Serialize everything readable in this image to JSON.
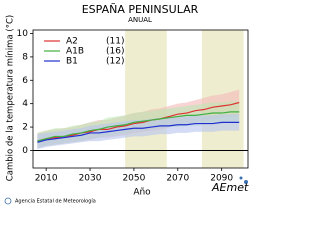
{
  "chart_data": {
    "type": "line",
    "title": "ESPAÑA PENINSULAR",
    "subtitle": "ANUAL",
    "y_label": "Cambio de la temperatura mínima (°C)",
    "x_label": "Año",
    "x": [
      2006,
      2010,
      2014,
      2018,
      2022,
      2026,
      2030,
      2034,
      2038,
      2042,
      2046,
      2050,
      2054,
      2058,
      2062,
      2066,
      2070,
      2074,
      2078,
      2082,
      2086,
      2090,
      2094,
      2098
    ],
    "series": [
      {
        "name": "A2",
        "count": "(11)",
        "color": "#e03030",
        "band_color": "#f4b8b8",
        "values": [
          0.8,
          1.0,
          1.1,
          1.2,
          1.3,
          1.5,
          1.6,
          1.8,
          1.8,
          2.0,
          2.1,
          2.3,
          2.4,
          2.6,
          2.7,
          2.9,
          3.1,
          3.2,
          3.4,
          3.5,
          3.7,
          3.8,
          3.9,
          4.1
        ],
        "lower": [
          0.2,
          0.4,
          0.5,
          0.6,
          0.7,
          0.8,
          0.9,
          1.1,
          1.1,
          1.2,
          1.3,
          1.5,
          1.6,
          1.7,
          1.8,
          2.0,
          2.2,
          2.3,
          2.4,
          2.5,
          2.7,
          2.8,
          2.9,
          3.0
        ],
        "upper": [
          1.5,
          1.7,
          1.8,
          1.9,
          2.0,
          2.2,
          2.4,
          2.6,
          2.6,
          2.8,
          3.0,
          3.2,
          3.3,
          3.5,
          3.6,
          3.8,
          4.0,
          4.1,
          4.3,
          4.5,
          4.7,
          4.8,
          5.0,
          5.2
        ]
      },
      {
        "name": "A1B",
        "count": "(16)",
        "color": "#40b040",
        "band_color": "#bde6b4",
        "values": [
          0.8,
          1.0,
          1.2,
          1.2,
          1.4,
          1.5,
          1.7,
          1.8,
          2.0,
          2.1,
          2.2,
          2.4,
          2.5,
          2.6,
          2.7,
          2.8,
          2.9,
          3.0,
          3.0,
          3.1,
          3.2,
          3.2,
          3.3,
          3.3
        ],
        "lower": [
          0.2,
          0.4,
          0.5,
          0.6,
          0.7,
          0.8,
          1.0,
          1.1,
          1.2,
          1.3,
          1.4,
          1.6,
          1.7,
          1.8,
          1.9,
          2.0,
          2.0,
          2.1,
          2.1,
          2.2,
          2.3,
          2.3,
          2.4,
          2.4
        ],
        "upper": [
          1.5,
          1.7,
          1.9,
          1.9,
          2.1,
          2.2,
          2.4,
          2.5,
          2.8,
          2.9,
          3.0,
          3.2,
          3.3,
          3.4,
          3.5,
          3.6,
          3.7,
          3.8,
          3.9,
          4.0,
          4.1,
          4.1,
          4.2,
          4.2
        ]
      },
      {
        "name": "B1",
        "count": "(12)",
        "color": "#2030d0",
        "band_color": "#b8c4ee",
        "values": [
          0.7,
          0.9,
          1.0,
          1.1,
          1.2,
          1.3,
          1.5,
          1.5,
          1.6,
          1.7,
          1.8,
          1.9,
          1.9,
          2.0,
          2.1,
          2.1,
          2.2,
          2.2,
          2.3,
          2.3,
          2.3,
          2.4,
          2.4,
          2.4
        ],
        "lower": [
          0.1,
          0.3,
          0.4,
          0.5,
          0.6,
          0.7,
          0.8,
          0.8,
          0.9,
          1.0,
          1.1,
          1.2,
          1.2,
          1.3,
          1.4,
          1.4,
          1.5,
          1.5,
          1.6,
          1.6,
          1.6,
          1.7,
          1.7,
          1.7
        ],
        "upper": [
          1.4,
          1.5,
          1.6,
          1.7,
          1.8,
          1.9,
          2.1,
          2.2,
          2.3,
          2.4,
          2.5,
          2.6,
          2.6,
          2.7,
          2.8,
          2.8,
          2.9,
          2.9,
          3.0,
          3.0,
          3.0,
          3.1,
          3.1,
          3.1
        ]
      }
    ],
    "periods": [
      [
        2046,
        2065
      ],
      [
        2081,
        2100
      ]
    ],
    "period_color": "#efedcf",
    "xlim": [
      2004,
      2102
    ],
    "ylim": [
      -1.5,
      10.3
    ],
    "xticks": [
      2010,
      2030,
      2050,
      2070,
      2090
    ],
    "yticks": [
      0,
      2,
      4,
      6,
      8,
      10
    ],
    "footer": "Agencia Estatal de Meteorología",
    "logo": "AEmet"
  }
}
